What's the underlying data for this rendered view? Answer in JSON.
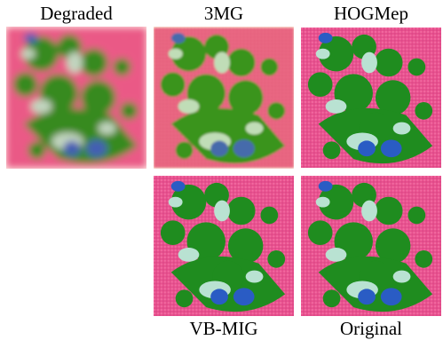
{
  "panels": [
    {
      "label": "Degraded"
    },
    {
      "label": "3MG"
    },
    {
      "label": "HOGMep"
    },
    {
      "label": "VB-MIG"
    },
    {
      "label": "Original"
    }
  ]
}
